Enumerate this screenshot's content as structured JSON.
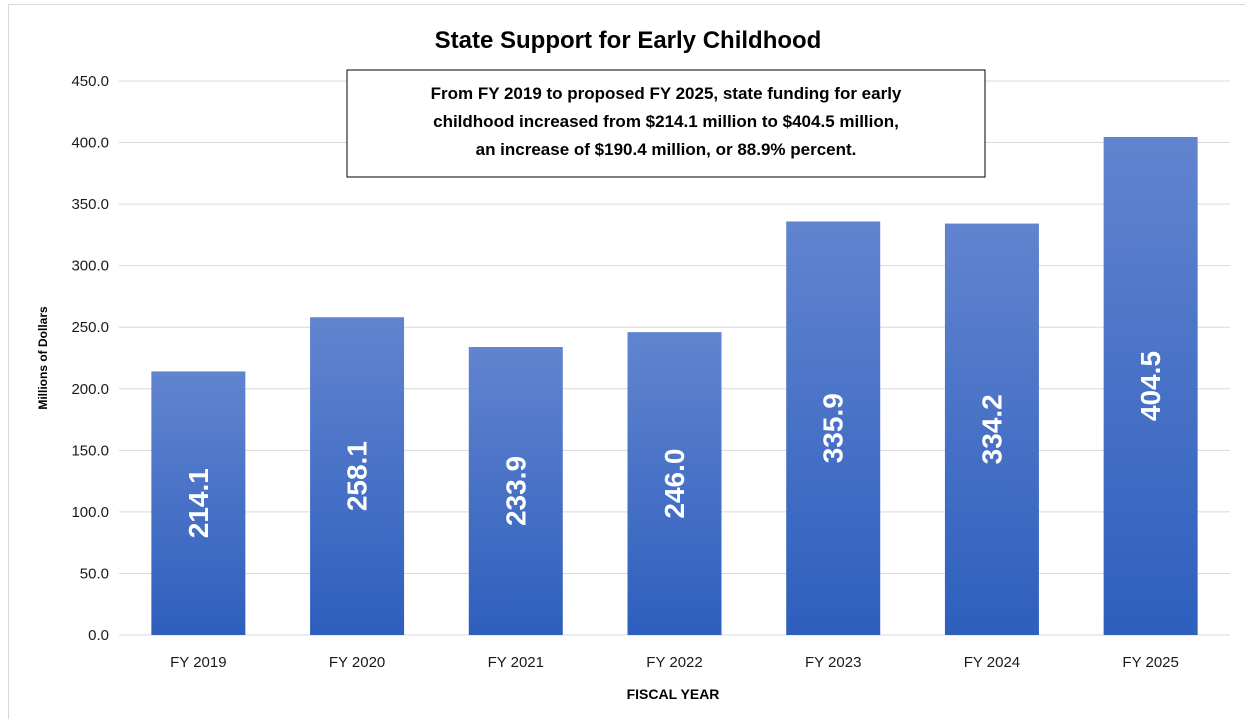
{
  "chart_data": {
    "type": "bar",
    "title": "State Support for Early Childhood",
    "xlabel": "FISCAL YEAR",
    "ylabel": "Millions of Dollars",
    "categories": [
      "FY 2019",
      "FY 2020",
      "FY 2021",
      "FY 2022",
      "FY 2023",
      "FY 2024",
      "FY 2025"
    ],
    "values": [
      214.1,
      258.1,
      233.9,
      246.0,
      335.9,
      334.2,
      404.5
    ],
    "value_labels": [
      "214.1",
      "258.1",
      "233.9",
      "246.0",
      "335.9",
      "334.2",
      "404.5"
    ],
    "ylim": [
      0,
      450
    ],
    "yticks": [
      0,
      50,
      100,
      150,
      200,
      250,
      300,
      350,
      400,
      450
    ],
    "ytick_labels": [
      "0.0",
      "50.0",
      "100.0",
      "150.0",
      "200.0",
      "250.0",
      "300.0",
      "350.0",
      "400.0",
      "450.0"
    ],
    "grid": true,
    "legend": "none",
    "annotation": [
      "From FY 2019 to proposed FY 2025, state funding for early",
      "childhood increased from $214.1 million to $404.5 million,",
      "an increase of $190.4 million, or 88.9% percent."
    ],
    "colors": {
      "bar_top": "#6184cf",
      "bar_bottom": "#2e5fbd",
      "grid": "#d9d9d9"
    }
  }
}
